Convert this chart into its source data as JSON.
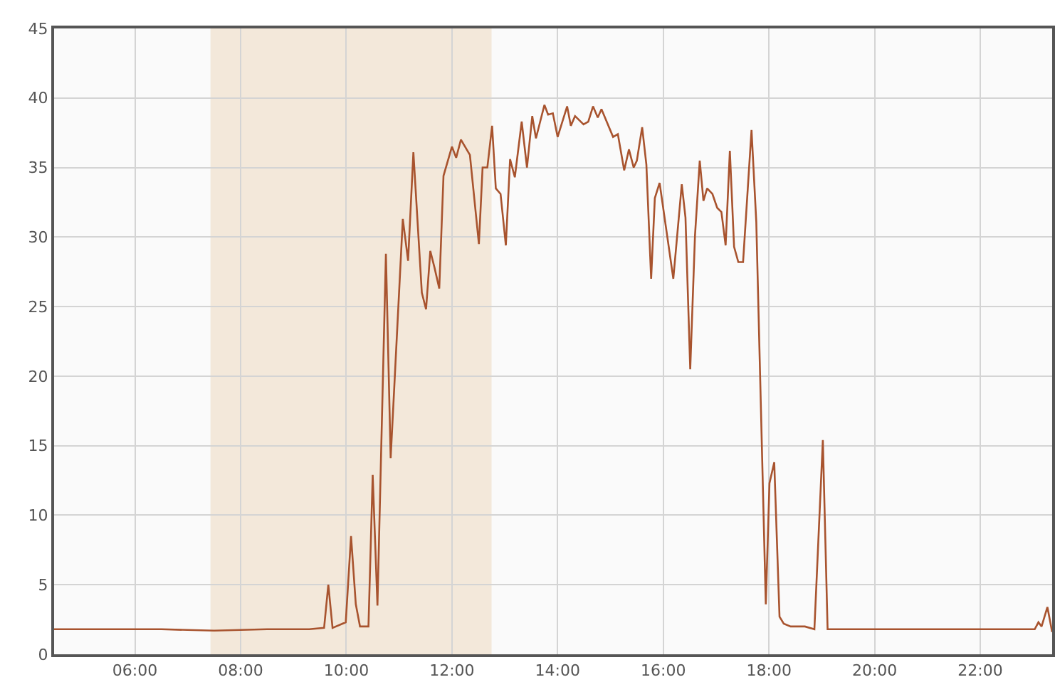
{
  "chart_data": {
    "type": "line",
    "x": [
      4.47,
      5.5,
      6.5,
      7.5,
      8.5,
      9.3,
      9.58,
      9.66,
      9.74,
      9.99,
      10.09,
      10.18,
      10.26,
      10.42,
      10.5,
      10.59,
      10.75,
      10.84,
      11.07,
      11.17,
      11.27,
      11.43,
      11.51,
      11.59,
      11.67,
      11.76,
      11.84,
      12.0,
      12.08,
      12.17,
      12.34,
      12.51,
      12.58,
      12.67,
      12.76,
      12.83,
      12.92,
      13.02,
      13.1,
      13.19,
      13.32,
      13.42,
      13.52,
      13.59,
      13.75,
      13.82,
      13.91,
      14.0,
      14.18,
      14.25,
      14.33,
      14.49,
      14.58,
      14.67,
      14.76,
      14.83,
      15.05,
      15.14,
      15.26,
      15.35,
      15.44,
      15.5,
      15.6,
      15.68,
      15.77,
      15.84,
      15.93,
      16.19,
      16.35,
      16.42,
      16.51,
      16.6,
      16.69,
      16.76,
      16.83,
      16.93,
      17.02,
      17.1,
      17.18,
      17.26,
      17.34,
      17.42,
      17.51,
      17.67,
      17.76,
      17.94,
      18.01,
      18.1,
      18.2,
      18.28,
      18.41,
      18.68,
      18.86,
      19.02,
      19.11,
      20.0,
      21.0,
      22.0,
      23.03,
      23.1,
      23.16,
      23.27,
      23.36
    ],
    "series": [
      {
        "color": "#a8532e",
        "values": [
          1.8,
          1.8,
          1.8,
          1.7,
          1.8,
          1.8,
          1.9,
          5.0,
          1.9,
          2.3,
          8.5,
          3.6,
          2.0,
          2.0,
          12.9,
          3.5,
          28.8,
          14.1,
          31.3,
          28.3,
          36.1,
          26.0,
          24.8,
          29.0,
          27.8,
          26.3,
          34.4,
          36.5,
          35.7,
          37.0,
          35.9,
          29.5,
          35.0,
          35.0,
          38.0,
          33.5,
          33.1,
          29.4,
          35.6,
          34.3,
          38.3,
          35.0,
          38.7,
          37.1,
          39.5,
          38.8,
          38.9,
          37.2,
          39.4,
          38.0,
          38.7,
          38.1,
          38.3,
          39.4,
          38.6,
          39.2,
          37.2,
          37.4,
          34.8,
          36.3,
          35.0,
          35.5,
          37.9,
          35.2,
          27.0,
          32.8,
          33.9,
          27.0,
          33.8,
          31.4,
          20.5,
          30.1,
          35.5,
          32.6,
          33.5,
          33.1,
          32.1,
          31.8,
          29.4,
          36.2,
          29.3,
          28.2,
          28.2,
          37.7,
          31.1,
          3.6,
          12.3,
          13.8,
          2.7,
          2.2,
          2.0,
          2.0,
          1.8,
          15.4,
          1.8,
          1.8,
          1.8,
          1.8,
          1.8,
          2.3,
          2.0,
          3.4,
          1.6
        ]
      }
    ],
    "xlim": [
      4.47,
      23.36
    ],
    "xticks": [
      {
        "value": 6,
        "label": "06:00"
      },
      {
        "value": 8,
        "label": "08:00"
      },
      {
        "value": 10,
        "label": "10:00"
      },
      {
        "value": 12,
        "label": "12:00"
      },
      {
        "value": 14,
        "label": "14:00"
      },
      {
        "value": 16,
        "label": "16:00"
      },
      {
        "value": 18,
        "label": "18:00"
      },
      {
        "value": 20,
        "label": "20:00"
      },
      {
        "value": 22,
        "label": "22:00"
      }
    ],
    "ylim": [
      0,
      45
    ],
    "yticks": [
      0,
      5,
      10,
      15,
      20,
      25,
      30,
      35,
      40,
      45
    ],
    "bands": [
      {
        "axis": "x",
        "from": 7.43,
        "to": 12.75,
        "color": "#f3e8da"
      }
    ],
    "grid": true,
    "marker": "none",
    "line_style": "solid"
  }
}
